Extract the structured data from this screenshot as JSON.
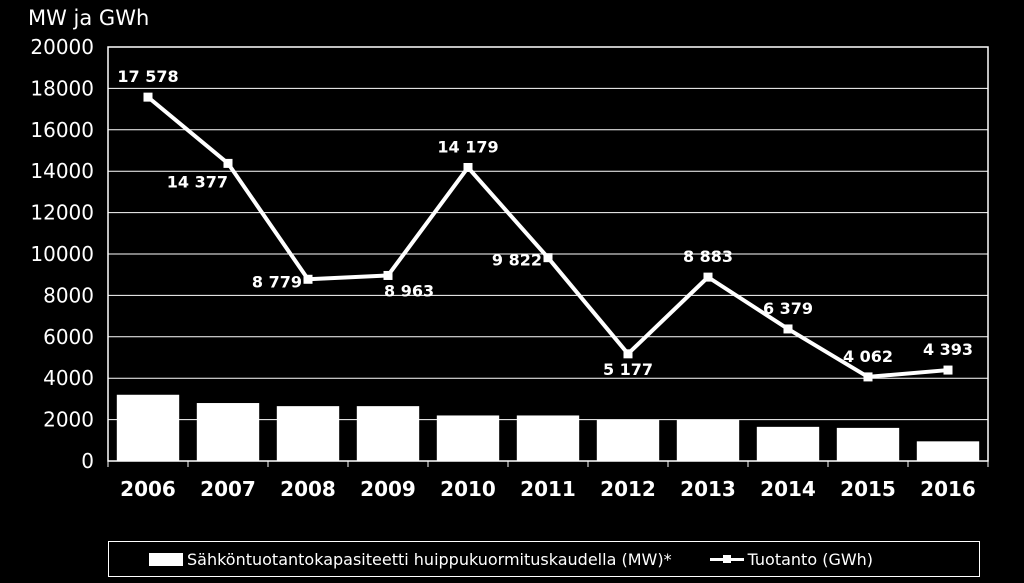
{
  "chart_data": {
    "type": "bar+line",
    "unit_label": "MW ja GWh",
    "categories": [
      "2006",
      "2007",
      "2008",
      "2009",
      "2010",
      "2011",
      "2012",
      "2013",
      "2014",
      "2015",
      "2016"
    ],
    "ylim": [
      0,
      20000
    ],
    "yticks": [
      0,
      2000,
      4000,
      6000,
      8000,
      10000,
      12000,
      14000,
      16000,
      18000,
      20000
    ],
    "grid": true,
    "legend_position": "bottom",
    "series": [
      {
        "name": "Sähköntuotantokapasiteetti huippukuormituskaudella (MW)*",
        "kind": "bar",
        "values": [
          3200,
          2800,
          2650,
          2650,
          2200,
          2200,
          2000,
          2000,
          1650,
          1600,
          950
        ]
      },
      {
        "name": "Tuotanto (GWh)",
        "kind": "line",
        "values": [
          17578,
          14377,
          8779,
          8963,
          14179,
          9822,
          5177,
          8883,
          6379,
          4062,
          4393
        ],
        "labels": [
          "17 578",
          "14 377",
          "8 779",
          "8 963",
          "14 179",
          "9 822",
          "5 177",
          "8 883",
          "6 379",
          "4 062",
          "4 393"
        ]
      }
    ],
    "colors": {
      "background": "#000000",
      "foreground": "#ffffff"
    }
  }
}
